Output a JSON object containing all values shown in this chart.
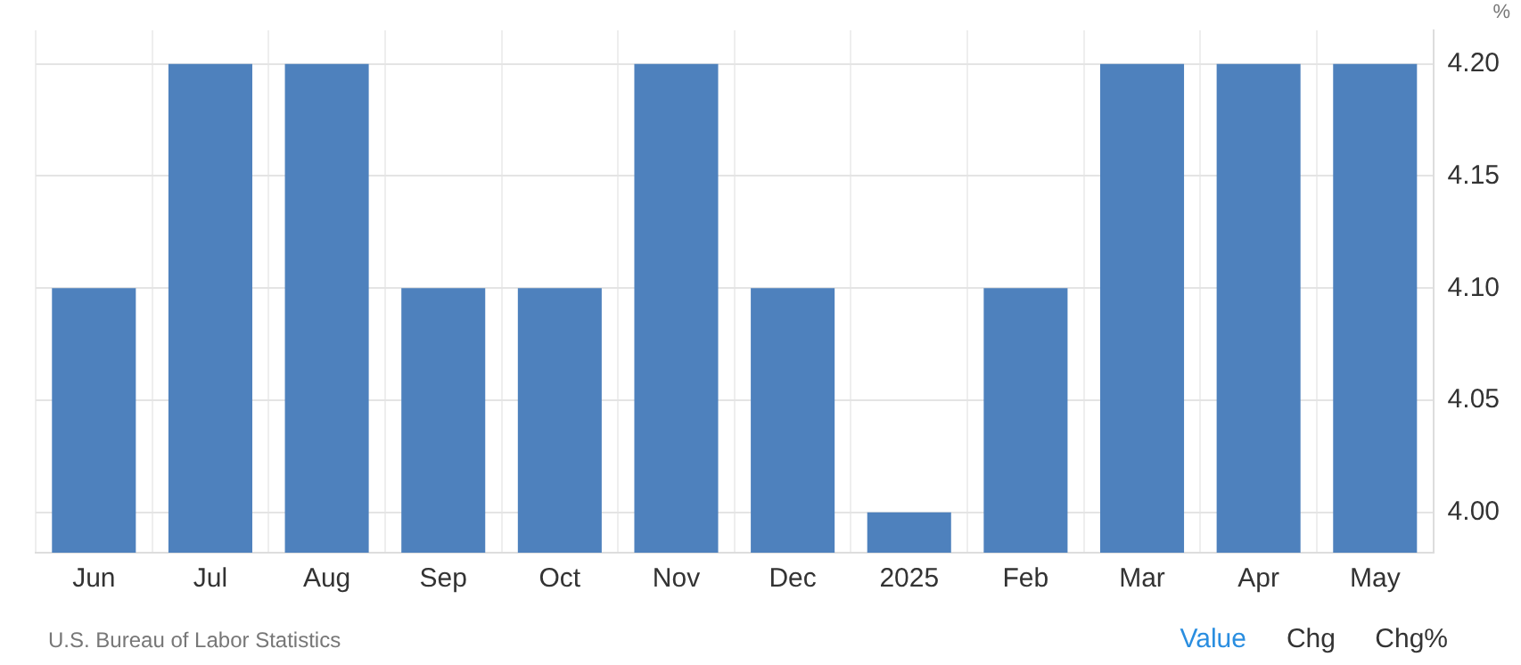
{
  "chart_data": {
    "type": "bar",
    "ylabel": "%",
    "categories": [
      "Jun",
      "Jul",
      "Aug",
      "Sep",
      "Oct",
      "Nov",
      "Dec",
      "2025",
      "Feb",
      "Mar",
      "Apr",
      "May"
    ],
    "values": [
      4.1,
      4.2,
      4.2,
      4.1,
      4.1,
      4.2,
      4.1,
      4.0,
      4.1,
      4.2,
      4.2,
      4.2
    ],
    "color": "#4e81bd",
    "ylim": [
      3.982,
      4.215
    ],
    "yticks": [
      {
        "value": 4.0,
        "label": "4.00"
      },
      {
        "value": 4.05,
        "label": "4.05"
      },
      {
        "value": 4.1,
        "label": "4.10"
      },
      {
        "value": 4.15,
        "label": "4.15"
      },
      {
        "value": 4.2,
        "label": "4.20"
      }
    ],
    "grid": true,
    "annotations": [
      "U.S. Bureau of Labor Statistics",
      "Value",
      "Chg",
      "Chg%"
    ]
  }
}
